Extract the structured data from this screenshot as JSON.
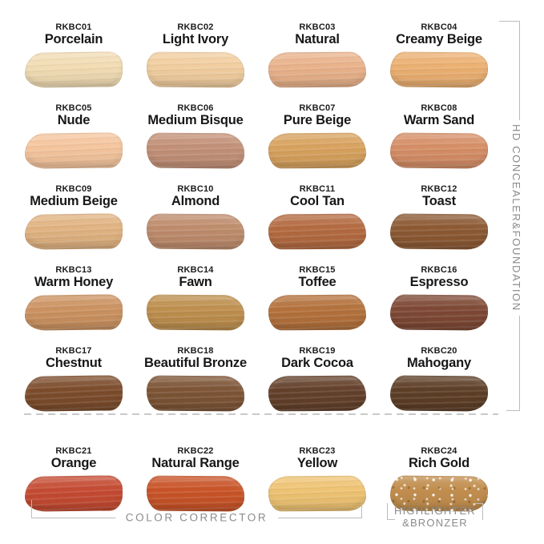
{
  "groups": {
    "foundation": {
      "label": "HD CONCEALER&FOUNDATION"
    },
    "corrector": {
      "label": "COLOR CORRECTOR"
    },
    "highlighter": {
      "label_line1": "HIGHLIGHTER",
      "label_line2": "&BRONZER"
    }
  },
  "swatches": [
    {
      "code": "RKBC01",
      "name": "Porcelain",
      "color": "#F2DCB3"
    },
    {
      "code": "RKBC02",
      "name": "Light Ivory",
      "color": "#F2CE9F"
    },
    {
      "code": "RKBC03",
      "name": "Natural",
      "color": "#E9B28A"
    },
    {
      "code": "RKBC04",
      "name": "Creamy Beige",
      "color": "#ECB071"
    },
    {
      "code": "RKBC05",
      "name": "Nude",
      "color": "#F5C59D"
    },
    {
      "code": "RKBC06",
      "name": "Medium Bisque",
      "color": "#C39077"
    },
    {
      "code": "RKBC07",
      "name": "Pure Beige",
      "color": "#D8A25D"
    },
    {
      "code": "RKBC08",
      "name": "Warm Sand",
      "color": "#D68E66"
    },
    {
      "code": "RKBC09",
      "name": "Medium Beige",
      "color": "#E2B381"
    },
    {
      "code": "RKBC10",
      "name": "Almond",
      "color": "#BF8C6C"
    },
    {
      "code": "RKBC11",
      "name": "Cool Tan",
      "color": "#B46A40"
    },
    {
      "code": "RKBC12",
      "name": "Toast",
      "color": "#8C5933"
    },
    {
      "code": "RKBC13",
      "name": "Warm Honey",
      "color": "#CC9260"
    },
    {
      "code": "RKBC14",
      "name": "Fawn",
      "color": "#BE8F4D"
    },
    {
      "code": "RKBC15",
      "name": "Toffee",
      "color": "#B4713B"
    },
    {
      "code": "RKBC16",
      "name": "Espresso",
      "color": "#7E4834"
    },
    {
      "code": "RKBC17",
      "name": "Chestnut",
      "color": "#7C4C2B"
    },
    {
      "code": "RKBC18",
      "name": "Beautiful Bronze",
      "color": "#7D5435"
    },
    {
      "code": "RKBC19",
      "name": "Dark Cocoa",
      "color": "#63402A"
    },
    {
      "code": "RKBC20",
      "name": "Mahogany",
      "color": "#5D3E26"
    },
    {
      "code": "RKBC21",
      "name": "Orange",
      "color": "#C54A31"
    },
    {
      "code": "RKBC22",
      "name": "Natural Range",
      "color": "#C95327"
    },
    {
      "code": "RKBC23",
      "name": "Yellow",
      "color": "#EFC372"
    },
    {
      "code": "RKBC24",
      "name": "Rich Gold",
      "color": "#C18E4F"
    }
  ],
  "colors": {
    "label_text": "#1c1c1c",
    "annotation_text": "#8b8b8b",
    "bracket_line": "#bcbcbc",
    "dashed_line": "#c9c9c9"
  }
}
